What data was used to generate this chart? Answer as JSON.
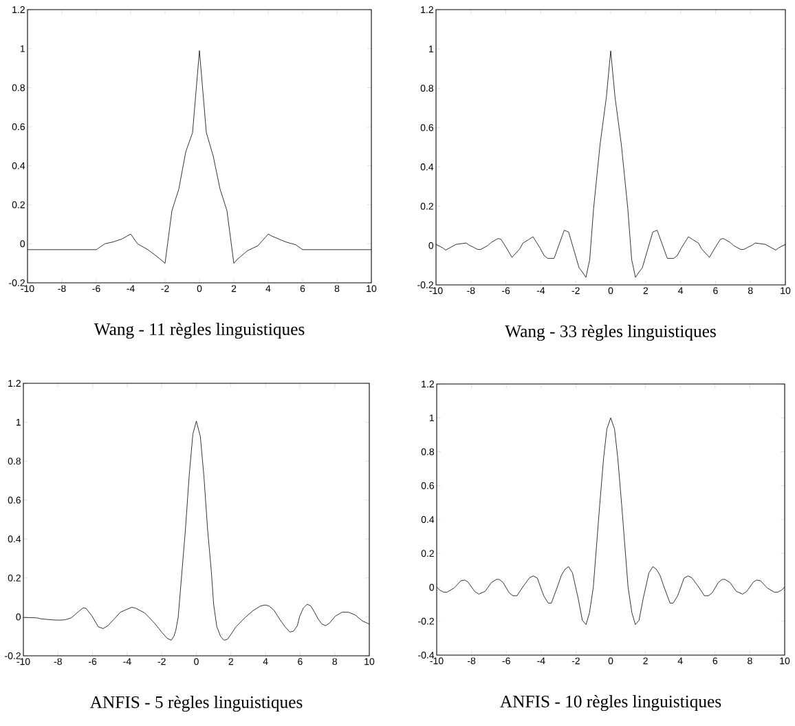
{
  "chart_data": [
    {
      "type": "line",
      "title": "Wang - 11 règles linguistiques",
      "color": "#000000",
      "xlim": [
        -10,
        10
      ],
      "ylim": [
        -0.2,
        1.2
      ],
      "xticks": [
        -10,
        -8,
        -6,
        -4,
        -2,
        0,
        2,
        4,
        6,
        8,
        10
      ],
      "yticks": [
        -0.2,
        0,
        0.2,
        0.4,
        0.6,
        0.8,
        1,
        1.2
      ],
      "x": [
        -10,
        -6,
        -5.5,
        -5,
        -4.5,
        -4,
        -3.6,
        -3,
        -2.4,
        -2,
        -1.6,
        -1.2,
        -0.8,
        -0.4,
        0,
        0.4,
        0.8,
        1.2,
        1.6,
        2,
        2.2,
        2.8,
        3.4,
        4,
        4.2,
        4.6,
        5,
        5.6,
        6,
        10
      ],
      "values": [
        -0.03,
        -0.03,
        0,
        0.01,
        0.025,
        0.05,
        0,
        -0.03,
        -0.07,
        -0.1,
        0.17,
        0.28,
        0.47,
        0.57,
        0.99,
        0.57,
        0.45,
        0.28,
        0.17,
        -0.1,
        -0.08,
        -0.035,
        -0.01,
        0.05,
        0.04,
        0.025,
        0.01,
        -0.005,
        -0.03,
        -0.03
      ]
    },
    {
      "type": "line",
      "title": "Wang - 33 règles linguistiques",
      "color": "#000000",
      "xlim": [
        -10,
        10
      ],
      "ylim": [
        -0.2,
        1.2
      ],
      "xticks": [
        -10,
        -8,
        -6,
        -4,
        -2,
        0,
        2,
        4,
        6,
        8,
        10
      ],
      "yticks": [
        -0.2,
        0,
        0.2,
        0.4,
        0.6,
        0.8,
        1,
        1.2
      ],
      "x": [
        -10,
        -9.59,
        -9.45,
        -8.86,
        -8.28,
        -8.06,
        -7.84,
        -7.62,
        -7.45,
        -7.04,
        -6.82,
        -6.45,
        -6.28,
        -6.01,
        -5.65,
        -5.36,
        -5.21,
        -5.02,
        -4.7,
        -4.45,
        -4.04,
        -3.82,
        -3.61,
        -3.24,
        -2.66,
        -2.41,
        -1.81,
        -1.61,
        -1.42,
        -1.2,
        -0.98,
        -0.61,
        -0.25,
        0,
        0.25,
        0.61,
        0.98,
        1.2,
        1.42,
        1.61,
        1.81,
        2.41,
        2.66,
        3.24,
        3.61,
        3.82,
        4.04,
        4.45,
        4.7,
        5.02,
        5.21,
        5.36,
        5.65,
        6.01,
        6.28,
        6.45,
        6.82,
        7.04,
        7.45,
        7.62,
        7.84,
        8.06,
        8.28,
        8.86,
        9.45,
        9.59,
        10
      ],
      "values": [
        0.006,
        -0.013,
        -0.023,
        0.006,
        0.013,
        0,
        -0.009,
        -0.02,
        -0.02,
        0,
        0.017,
        0.036,
        0.032,
        -0.006,
        -0.06,
        -0.032,
        -0.017,
        0.013,
        0.03,
        0.045,
        -0.013,
        -0.05,
        -0.065,
        -0.065,
        0.078,
        0.069,
        -0.113,
        -0.136,
        -0.162,
        -0.071,
        0.188,
        0.513,
        0.753,
        0.99,
        0.753,
        0.513,
        0.188,
        -0.071,
        -0.162,
        -0.136,
        -0.113,
        0.069,
        0.078,
        -0.065,
        -0.065,
        -0.05,
        -0.013,
        0.045,
        0.03,
        0.013,
        -0.017,
        -0.032,
        -0.06,
        -0.006,
        0.032,
        0.036,
        0.017,
        0,
        -0.02,
        -0.02,
        -0.009,
        0,
        0.013,
        0.006,
        -0.023,
        -0.013,
        0.006
      ]
    },
    {
      "type": "line",
      "title": "ANFIS - 5 règles linguistiques",
      "color": "#000000",
      "xlim": [
        -10,
        10
      ],
      "ylim": [
        -0.2,
        1.2
      ],
      "xticks": [
        -10,
        -8,
        -6,
        -4,
        -2,
        0,
        2,
        4,
        6,
        8,
        10
      ],
      "yticks": [
        -0.2,
        0,
        0.2,
        0.4,
        0.6,
        0.8,
        1,
        1.2
      ],
      "x": [
        -10,
        -9.22,
        -9,
        -8.37,
        -7.94,
        -7.59,
        -7.23,
        -6.8,
        -6.55,
        -6.38,
        -6.03,
        -5.67,
        -5.39,
        -5.11,
        -4.39,
        -3.75,
        -3.54,
        -2.98,
        -2.41,
        -1.97,
        -1.69,
        -1.45,
        -1.3,
        -1.19,
        -1.05,
        -0.84,
        -0.63,
        -0.41,
        -0.2,
        0,
        0.23,
        0.44,
        0.65,
        0.87,
        1,
        1.18,
        1.4,
        1.6,
        1.8,
        2,
        2.29,
        2.86,
        3.28,
        3.71,
        3.99,
        4.2,
        4.49,
        4.84,
        5.13,
        5.41,
        5.62,
        5.84,
        5.98,
        6.19,
        6.41,
        6.62,
        6.83,
        7.05,
        7.26,
        7.47,
        7.69,
        8.04,
        8.43,
        8.79,
        9.18,
        9.6,
        10
      ],
      "values": [
        -0.003,
        -0.005,
        -0.01,
        -0.015,
        -0.017,
        -0.015,
        -0.005,
        0.028,
        0.046,
        0.044,
        0.004,
        -0.051,
        -0.06,
        -0.045,
        0.024,
        0.049,
        0.046,
        0.02,
        -0.033,
        -0.082,
        -0.11,
        -0.12,
        -0.1,
        -0.07,
        -0.002,
        0.224,
        0.45,
        0.73,
        0.94,
        1.006,
        0.927,
        0.72,
        0.45,
        0.23,
        0.065,
        -0.049,
        -0.1,
        -0.12,
        -0.115,
        -0.09,
        -0.051,
        0,
        0.032,
        0.056,
        0.061,
        0.056,
        0.034,
        -0.015,
        -0.051,
        -0.078,
        -0.073,
        -0.045,
        0.004,
        0.046,
        0.065,
        0.056,
        0.024,
        -0.012,
        -0.037,
        -0.045,
        -0.033,
        0.004,
        0.024,
        0.024,
        0.01,
        -0.021,
        -0.037
      ]
    },
    {
      "type": "line",
      "title": "ANFIS - 10 règles linguistiques",
      "color": "#000000",
      "xlim": [
        -10,
        10
      ],
      "ylim": [
        -0.4,
        1.2
      ],
      "xticks": [
        -10,
        -8,
        -6,
        -4,
        -2,
        0,
        2,
        4,
        6,
        8,
        10
      ],
      "yticks": [
        -0.4,
        -0.2,
        0,
        0.2,
        0.4,
        0.6,
        0.8,
        1,
        1.2
      ],
      "x": [
        -10,
        -9.81,
        -9.59,
        -9.41,
        -9,
        -8.61,
        -8.39,
        -8.21,
        -7.8,
        -7.58,
        -7.22,
        -6.85,
        -6.56,
        -6.41,
        -6.19,
        -5.83,
        -5.61,
        -5.39,
        -5.02,
        -4.66,
        -4.44,
        -4.22,
        -3.85,
        -3.59,
        -3.41,
        -3.05,
        -2.83,
        -2.61,
        -2.42,
        -2.2,
        -1.87,
        -1.63,
        -1.42,
        -1.22,
        -1,
        -0.63,
        -0.41,
        -0.22,
        0,
        0.22,
        0.41,
        0.63,
        1,
        1.22,
        1.42,
        1.63,
        1.87,
        2.2,
        2.42,
        2.61,
        2.83,
        3.05,
        3.41,
        3.59,
        3.85,
        4.22,
        4.44,
        4.66,
        5.02,
        5.39,
        5.61,
        5.83,
        6.19,
        6.41,
        6.56,
        6.85,
        7.22,
        7.58,
        7.8,
        8.21,
        8.39,
        8.61,
        9,
        9.41,
        9.59,
        9.81,
        10
      ],
      "values": [
        0,
        -0.017,
        -0.029,
        -0.029,
        -0.004,
        0.039,
        0.043,
        0.032,
        -0.026,
        -0.04,
        -0.024,
        0.029,
        0.047,
        0.047,
        0.029,
        -0.033,
        -0.05,
        -0.05,
        0.007,
        0.057,
        0.067,
        0.055,
        -0.05,
        -0.093,
        -0.093,
        0.007,
        0.072,
        0.108,
        0.122,
        0.086,
        -0.065,
        -0.194,
        -0.22,
        -0.151,
        0,
        0.488,
        0.76,
        0.935,
        1.0,
        0.935,
        0.76,
        0.488,
        0,
        -0.151,
        -0.22,
        -0.194,
        -0.065,
        0.086,
        0.122,
        0.108,
        0.072,
        0.007,
        -0.093,
        -0.093,
        -0.05,
        0.055,
        0.067,
        0.057,
        0.007,
        -0.05,
        -0.05,
        -0.033,
        0.029,
        0.047,
        0.047,
        0.029,
        -0.024,
        -0.04,
        -0.026,
        0.032,
        0.043,
        0.039,
        -0.004,
        -0.029,
        -0.029,
        -0.017,
        0
      ]
    }
  ]
}
